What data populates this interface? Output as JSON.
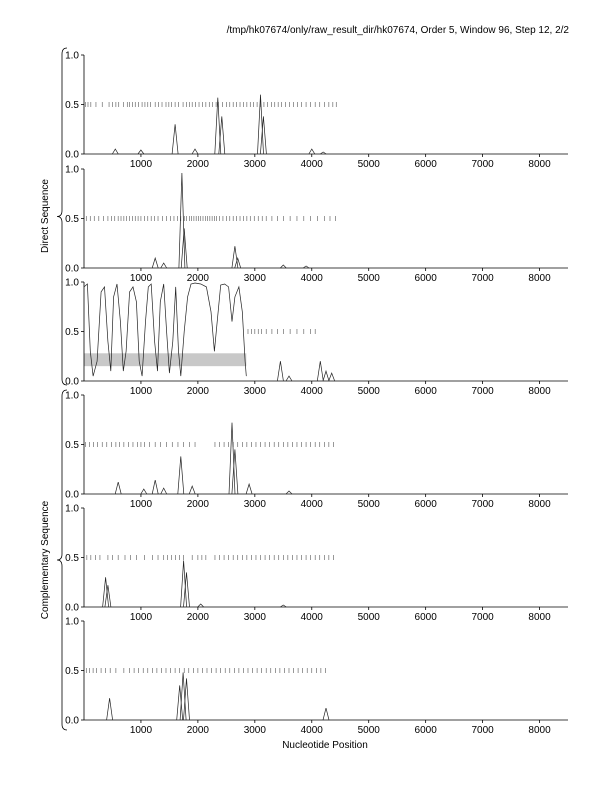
{
  "header": "/tmp/hk07674/only/raw_result_dir/hk07674, Order 5, Window 96, Step 12, 2/2",
  "xlabel": "Nucleotide Position",
  "group_labels": {
    "direct": "Direct Sequence",
    "complementary": "Complementary Sequence"
  },
  "chart_data": [
    {
      "type": "line",
      "group": "Direct Sequence",
      "xlim": [
        0,
        8500
      ],
      "ylim": [
        0,
        1.0
      ],
      "yticks": [
        "0.0",
        "0.5",
        "1.0"
      ],
      "xticks": [
        1000,
        2000,
        3000,
        4000,
        5000,
        6000,
        7000,
        8000
      ],
      "peaks": [
        [
          550,
          0.05
        ],
        [
          1000,
          0.04
        ],
        [
          1600,
          0.3
        ],
        [
          1950,
          0.05
        ],
        [
          2350,
          0.57
        ],
        [
          2420,
          0.38
        ],
        [
          3100,
          0.6
        ],
        [
          3150,
          0.38
        ],
        [
          4000,
          0.05
        ],
        [
          4200,
          0.02
        ]
      ],
      "marks": [
        30,
        70,
        120,
        210,
        320,
        440,
        500,
        560,
        610,
        690,
        760,
        800,
        850,
        900,
        960,
        1020,
        1070,
        1120,
        1170,
        1250,
        1310,
        1370,
        1440,
        1490,
        1540,
        1600,
        1660,
        1740,
        1800,
        1850,
        1900,
        1960,
        2020,
        2080,
        2140,
        2200,
        2260,
        2320,
        2360,
        2430,
        2500,
        2560,
        2620,
        2680,
        2740,
        2800,
        2860,
        2920,
        2980,
        3040,
        3100,
        3160,
        3220,
        3290,
        3350,
        3410,
        3470,
        3540,
        3610,
        3680,
        3750,
        3820,
        3900,
        3980,
        4060,
        4140,
        4220,
        4300,
        4370,
        4430
      ],
      "shaded": null
    },
    {
      "type": "line",
      "group": "Direct Sequence",
      "xlim": [
        0,
        8500
      ],
      "ylim": [
        0,
        1.0
      ],
      "yticks": [
        "0.0",
        "0.5",
        "1.0"
      ],
      "xticks": [
        1000,
        2000,
        3000,
        4000,
        5000,
        6000,
        7000,
        8000
      ],
      "peaks": [
        [
          1250,
          0.1
        ],
        [
          1400,
          0.05
        ],
        [
          1720,
          0.96
        ],
        [
          1760,
          0.4
        ],
        [
          2650,
          0.22
        ],
        [
          2700,
          0.1
        ],
        [
          3500,
          0.03
        ],
        [
          3900,
          0.02
        ]
      ],
      "marks": [
        40,
        110,
        180,
        260,
        340,
        420,
        480,
        540,
        600,
        650,
        700,
        750,
        800,
        850,
        900,
        950,
        1000,
        1060,
        1120,
        1180,
        1240,
        1300,
        1380,
        1450,
        1520,
        1580,
        1640,
        1700,
        1760,
        1800,
        1850,
        1890,
        1930,
        1970,
        2010,
        2050,
        2090,
        2130,
        2170,
        2210,
        2250,
        2290,
        2330,
        2380,
        2440,
        2500,
        2560,
        2620,
        2680,
        2740,
        2800,
        2860,
        2920,
        2990,
        3060,
        3130,
        3200,
        3300,
        3400,
        3500,
        3620,
        3740,
        3860,
        3980,
        4100,
        4220,
        4320,
        4420
      ],
      "shaded": null
    },
    {
      "type": "line",
      "group": "Direct Sequence",
      "xlim": [
        0,
        8500
      ],
      "ylim": [
        0,
        1.0
      ],
      "yticks": [
        "0.0",
        "0.5",
        "1.0"
      ],
      "xticks": [
        1000,
        2000,
        3000,
        4000,
        5000,
        6000,
        7000,
        8000
      ],
      "peaks": [
        [
          3450,
          0.2
        ],
        [
          3600,
          0.05
        ],
        [
          4150,
          0.2
        ],
        [
          4250,
          0.1
        ],
        [
          4350,
          0.08
        ]
      ],
      "dense": {
        "range": [
          0,
          2850
        ],
        "profile": [
          [
            0,
            0.95
          ],
          [
            60,
            0.98
          ],
          [
            110,
            0.3
          ],
          [
            160,
            0.05
          ],
          [
            230,
            0.2
          ],
          [
            300,
            0.9
          ],
          [
            360,
            0.95
          ],
          [
            420,
            0.4
          ],
          [
            470,
            0.1
          ],
          [
            520,
            0.85
          ],
          [
            580,
            0.98
          ],
          [
            640,
            0.6
          ],
          [
            690,
            0.1
          ],
          [
            740,
            0.3
          ],
          [
            800,
            0.9
          ],
          [
            860,
            0.95
          ],
          [
            920,
            0.8
          ],
          [
            970,
            0.2
          ],
          [
            1020,
            0.05
          ],
          [
            1080,
            0.6
          ],
          [
            1130,
            0.95
          ],
          [
            1180,
            0.98
          ],
          [
            1240,
            0.4
          ],
          [
            1290,
            0.1
          ],
          [
            1340,
            0.8
          ],
          [
            1400,
            0.98
          ],
          [
            1450,
            0.5
          ],
          [
            1500,
            0.08
          ],
          [
            1560,
            0.4
          ],
          [
            1610,
            0.95
          ],
          [
            1660,
            0.3
          ],
          [
            1700,
            0.05
          ],
          [
            1760,
            0.5
          ],
          [
            1820,
            0.85
          ],
          [
            1880,
            0.98
          ],
          [
            1950,
            0.99
          ],
          [
            2050,
            0.98
          ],
          [
            2150,
            0.95
          ],
          [
            2230,
            0.7
          ],
          [
            2290,
            0.3
          ],
          [
            2340,
            0.6
          ],
          [
            2400,
            0.97
          ],
          [
            2470,
            0.98
          ],
          [
            2540,
            0.95
          ],
          [
            2600,
            0.6
          ],
          [
            2650,
            0.85
          ],
          [
            2720,
            0.95
          ],
          [
            2780,
            0.7
          ],
          [
            2830,
            0.2
          ],
          [
            2850,
            0.05
          ]
        ]
      },
      "marks": [
        2880,
        2940,
        3000,
        3060,
        3120,
        3200,
        3300,
        3400,
        3500,
        3620,
        3740,
        3860,
        3980,
        4060
      ],
      "shaded": {
        "x0": 0,
        "x1": 2850,
        "y0": 0.15,
        "y1": 0.28
      }
    },
    {
      "type": "line",
      "group": "Complementary Sequence",
      "xlim": [
        0,
        8500
      ],
      "ylim": [
        0,
        1.0
      ],
      "yticks": [
        "0.0",
        "0.5",
        "1.0"
      ],
      "xticks": [
        1000,
        2000,
        3000,
        4000,
        5000,
        6000,
        7000,
        8000
      ],
      "peaks": [
        [
          600,
          0.12
        ],
        [
          1050,
          0.05
        ],
        [
          1250,
          0.14
        ],
        [
          1400,
          0.06
        ],
        [
          1700,
          0.38
        ],
        [
          1900,
          0.08
        ],
        [
          2600,
          0.72
        ],
        [
          2650,
          0.45
        ],
        [
          2900,
          0.1
        ],
        [
          3600,
          0.03
        ]
      ],
      "marks": [
        30,
        100,
        170,
        240,
        320,
        400,
        480,
        560,
        620,
        700,
        780,
        860,
        940,
        1000,
        1060,
        1150,
        1250,
        1340,
        1450,
        1550,
        1650,
        1750,
        1850,
        1950,
        2300,
        2380,
        2460,
        2540,
        2620,
        2700,
        2780,
        2860,
        2940,
        3020,
        3100,
        3180,
        3260,
        3340,
        3420,
        3500,
        3580,
        3660,
        3740,
        3820,
        3900,
        3980,
        4060,
        4140,
        4220,
        4300,
        4380
      ],
      "shaded": null
    },
    {
      "type": "line",
      "group": "Complementary Sequence",
      "xlim": [
        0,
        8500
      ],
      "ylim": [
        0,
        1.0
      ],
      "yticks": [
        "0.0",
        "0.5",
        "1.0"
      ],
      "xticks": [
        1000,
        2000,
        3000,
        4000,
        5000,
        6000,
        7000,
        8000
      ],
      "peaks": [
        [
          380,
          0.3
        ],
        [
          420,
          0.22
        ],
        [
          1750,
          0.47
        ],
        [
          1800,
          0.35
        ],
        [
          2050,
          0.03
        ],
        [
          3500,
          0.02
        ]
      ],
      "marks": [
        50,
        120,
        200,
        280,
        420,
        500,
        600,
        720,
        820,
        920,
        1060,
        1200,
        1300,
        1400,
        1470,
        1540,
        1610,
        1680,
        1750,
        1900,
        2000,
        2070,
        2140,
        2300,
        2380,
        2460,
        2540,
        2620,
        2700,
        2780,
        2860,
        2940,
        3020,
        3100,
        3180,
        3260,
        3340,
        3420,
        3500,
        3580,
        3660,
        3740,
        3820,
        3900,
        3980,
        4060,
        4140,
        4220,
        4300,
        4380
      ],
      "shaded": null
    },
    {
      "type": "line",
      "group": "Complementary Sequence",
      "xlim": [
        0,
        8500
      ],
      "ylim": [
        0,
        1.0
      ],
      "yticks": [
        "0.0",
        "0.5",
        "1.0"
      ],
      "xticks": [
        1000,
        2000,
        3000,
        4000,
        5000,
        6000,
        7000,
        8000
      ],
      "peaks": [
        [
          450,
          0.22
        ],
        [
          1680,
          0.35
        ],
        [
          1740,
          0.48
        ],
        [
          1800,
          0.42
        ],
        [
          4250,
          0.12
        ]
      ],
      "marks": [
        40,
        100,
        160,
        220,
        300,
        380,
        460,
        560,
        700,
        800,
        880,
        960,
        1040,
        1120,
        1200,
        1280,
        1360,
        1440,
        1520,
        1600,
        1680,
        1760,
        1840,
        1920,
        2000,
        2080,
        2160,
        2240,
        2320,
        2400,
        2480,
        2560,
        2640,
        2720,
        2800,
        2880,
        2960,
        3040,
        3120,
        3200,
        3280,
        3360,
        3440,
        3520,
        3600,
        3680,
        3760,
        3840,
        3920,
        4000,
        4080,
        4160,
        4240
      ],
      "shaded": null
    }
  ]
}
